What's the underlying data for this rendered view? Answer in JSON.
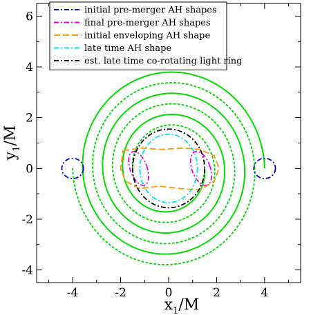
{
  "chart_data": {
    "type": "line",
    "xlabel": "x",
    "xlabel_sub": "1",
    "xlabel_unit": "/M",
    "ylabel": "y",
    "ylabel_sub": "1",
    "ylabel_unit": "/M",
    "xlim": [
      -5.5,
      5.5
    ],
    "ylim": [
      -4.5,
      6.5
    ],
    "x_ticks": [
      -4,
      -2,
      0,
      2,
      4
    ],
    "y_ticks": [
      -4,
      -2,
      0,
      2,
      4,
      6
    ],
    "x_tick_labels": [
      "-4",
      "-2",
      "0",
      "2",
      "4"
    ],
    "y_tick_labels": [
      "-4",
      "-2",
      "0",
      "2",
      "4",
      "6"
    ],
    "grid": false,
    "legend_position": "top-left",
    "series": [
      {
        "name": "initial pre-merger AH shapes",
        "color": "#0000cc",
        "dash": "dashdot",
        "shapes": [
          {
            "cx": -4.0,
            "cy": 0.0,
            "rx": 0.45,
            "ry": 0.4
          },
          {
            "cx": 4.0,
            "cy": 0.0,
            "rx": 0.45,
            "ry": 0.4
          }
        ]
      },
      {
        "name": "final pre-merger AH shapes",
        "color": "#ee00ee",
        "dash": "dashdot",
        "shapes": [
          {
            "cx": -1.25,
            "cy": 0.0,
            "rx": 0.35,
            "ry": 0.7,
            "rotation": -20
          },
          {
            "cx": 1.35,
            "cy": 0.0,
            "rx": 0.38,
            "ry": 0.7,
            "rotation": -20
          }
        ]
      },
      {
        "name": "initial enveloping AH shape",
        "color": "#ff9900",
        "dash": "dash",
        "points": [
          [
            -1.9,
            0.7
          ],
          [
            -1.2,
            0.8
          ],
          [
            -0.3,
            0.75
          ],
          [
            0.6,
            0.8
          ],
          [
            1.3,
            0.75
          ],
          [
            1.9,
            0.5
          ],
          [
            2.1,
            0.0
          ],
          [
            1.9,
            -0.5
          ],
          [
            1.3,
            -0.85
          ],
          [
            0.5,
            -0.8
          ],
          [
            -0.4,
            -0.7
          ],
          [
            -1.2,
            -0.8
          ],
          [
            -1.8,
            -0.5
          ],
          [
            -2.0,
            0.0
          ]
        ]
      },
      {
        "name": "late time AH shape",
        "color": "#00e5e5",
        "dash": "dashdot",
        "shapes": [
          {
            "cx": 0.0,
            "cy": 0.0,
            "rx": 1.2,
            "ry": 1.35
          }
        ]
      },
      {
        "name": "est. late time co-rotating light ring",
        "color": "#000000",
        "dash": "dashdot",
        "shapes": [
          {
            "cx": 0.0,
            "cy": 0.0,
            "rx": 1.5,
            "ry": 1.55
          }
        ]
      },
      {
        "color": "#00dd00",
        "dash": "solid",
        "spiral": {
          "start_angle_deg": 0,
          "turns": 3,
          "r_start": 4.0,
          "r_end": 1.5
        }
      },
      {
        "color": "#00dd00",
        "dash": "dot",
        "spiral": {
          "start_angle_deg": 180,
          "turns": 3,
          "r_start": 4.0,
          "r_end": 1.5
        }
      }
    ]
  }
}
